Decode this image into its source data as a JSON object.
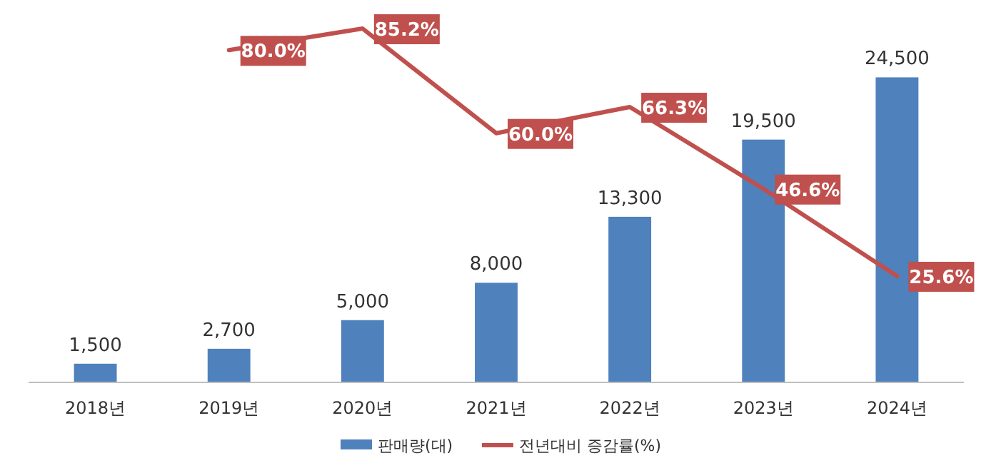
{
  "chart_data": {
    "type": "bar",
    "categories": [
      "2018년",
      "2019년",
      "2020년",
      "2021년",
      "2022년",
      "2023년",
      "2024년"
    ],
    "legend": "bottom",
    "series": [
      {
        "name": "판매량(대)",
        "color": "#4f81bd",
        "values": [
          1500,
          2700,
          5000,
          8000,
          13300,
          19500,
          24500
        ],
        "value_labels": [
          "1,500",
          "2,700",
          "5,000",
          "8,000",
          "13,300",
          "19,500",
          "24,500"
        ]
      },
      {
        "name": "전년대비 증감률(%)",
        "type": "line",
        "axis": "y2",
        "color": "#c0504d",
        "values": [
          null,
          80.0,
          85.2,
          60.0,
          66.3,
          46.6,
          25.6
        ],
        "value_labels": [
          null,
          "80.0%",
          "85.2%",
          "60.0%",
          "66.3%",
          "46.6%",
          "25.6%"
        ]
      }
    ]
  }
}
